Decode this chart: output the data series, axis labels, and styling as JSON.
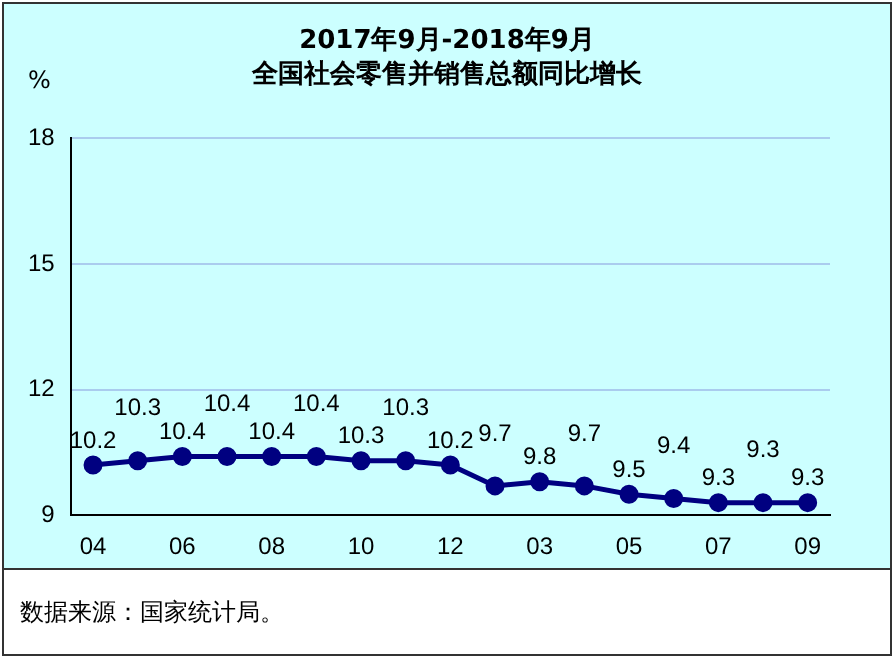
{
  "chart_data": {
    "type": "line",
    "title": "2017年9月-2018年9月",
    "subtitle": "全国社会零售并销售总额同比增长",
    "ylabel": "%",
    "categories": [
      "04",
      null,
      "06",
      null,
      "08",
      null,
      "10",
      null,
      "12",
      null,
      "03",
      null,
      "05",
      null,
      "07",
      null,
      "09"
    ],
    "series": [
      {
        "color": "#000080",
        "values": [
          10.2,
          10.3,
          10.4,
          10.4,
          10.4,
          10.4,
          10.3,
          10.3,
          10.2,
          9.7,
          9.8,
          9.7,
          9.5,
          9.4,
          9.3,
          9.3,
          9.3
        ]
      }
    ],
    "ylim": [
      9,
      18
    ],
    "yticks": [
      9,
      12,
      15,
      18
    ],
    "grid": "y",
    "legend": false,
    "marker": "circle",
    "line_style": "solid",
    "data_labels": true,
    "annotations": [
      "数据来源：国家统计局。"
    ]
  }
}
